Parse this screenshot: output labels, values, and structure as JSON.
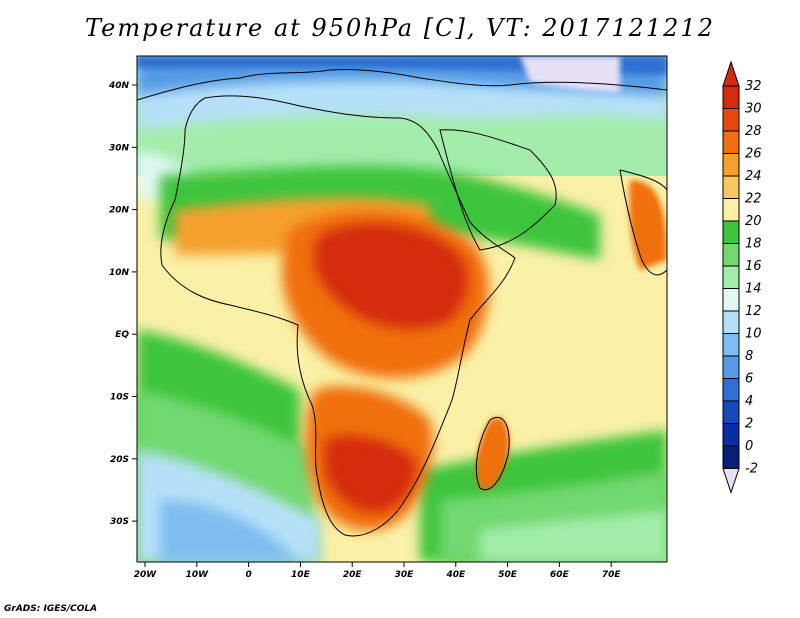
{
  "title": "Temperature at 950hPa [C], VT: 2017121212",
  "credit": "GrADS: IGES/COLA",
  "map": {
    "lat_ticks": [
      "40N",
      "30N",
      "20N",
      "10N",
      "EQ",
      "10S",
      "20S",
      "30S"
    ],
    "lon_ticks": [
      "20W",
      "10W",
      "0",
      "10E",
      "20E",
      "30E",
      "40E",
      "50E",
      "60E",
      "70E"
    ]
  },
  "colorbar": {
    "labels": [
      "32",
      "30",
      "28",
      "26",
      "24",
      "22",
      "20",
      "18",
      "16",
      "14",
      "12",
      "10",
      "8",
      "6",
      "4",
      "2",
      "0",
      "-2"
    ],
    "colors": [
      "#d42a0e",
      "#e8480e",
      "#f0700f",
      "#f5a02d",
      "#f7c860",
      "#faf0a6",
      "#3ec43e",
      "#72d86f",
      "#a3ecaa",
      "#e1f9f5",
      "#b6e0f8",
      "#7fbdf0",
      "#559ae4",
      "#2f71d2",
      "#1548bd",
      "#0a2da3",
      "#0a1e77"
    ]
  }
}
